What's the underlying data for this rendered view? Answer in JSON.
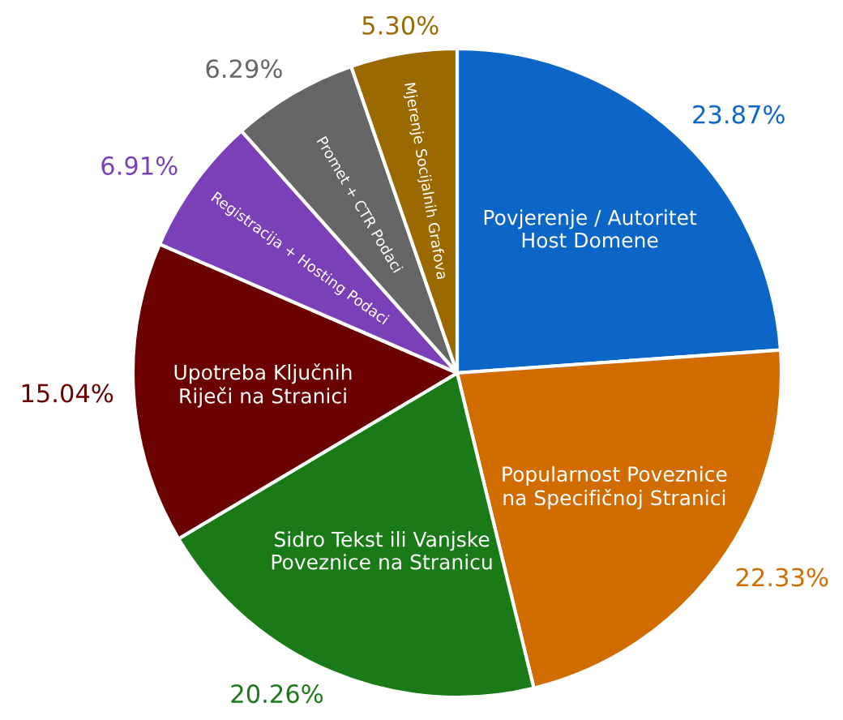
{
  "chart_data": {
    "type": "pie",
    "categories": [
      "Povjerenje / Autoritet\nHost Domene",
      "Popularnost Poveznice\nna Specifičnoj Stranici",
      "Sidro Tekst ili Vanjske\nPoveznice na Stranicu",
      "Upotreba Ključnih\nRiječi na Stranici",
      "Registracija + Hosting Podaci",
      "Promet + CTR Podaci",
      "Mjerenje Socijalnih Grafova"
    ],
    "values": [
      23.87,
      22.33,
      20.26,
      15.04,
      6.91,
      6.29,
      5.3
    ],
    "value_labels": [
      "23.87%",
      "22.33%",
      "20.26%",
      "15.04%",
      "6.91%",
      "6.29%",
      "5.30%"
    ],
    "colors": [
      "#0b66c8",
      "#d06c00",
      "#1a7a18",
      "#6a0000",
      "#7b40b8",
      "#666666",
      "#9a6a00"
    ]
  }
}
